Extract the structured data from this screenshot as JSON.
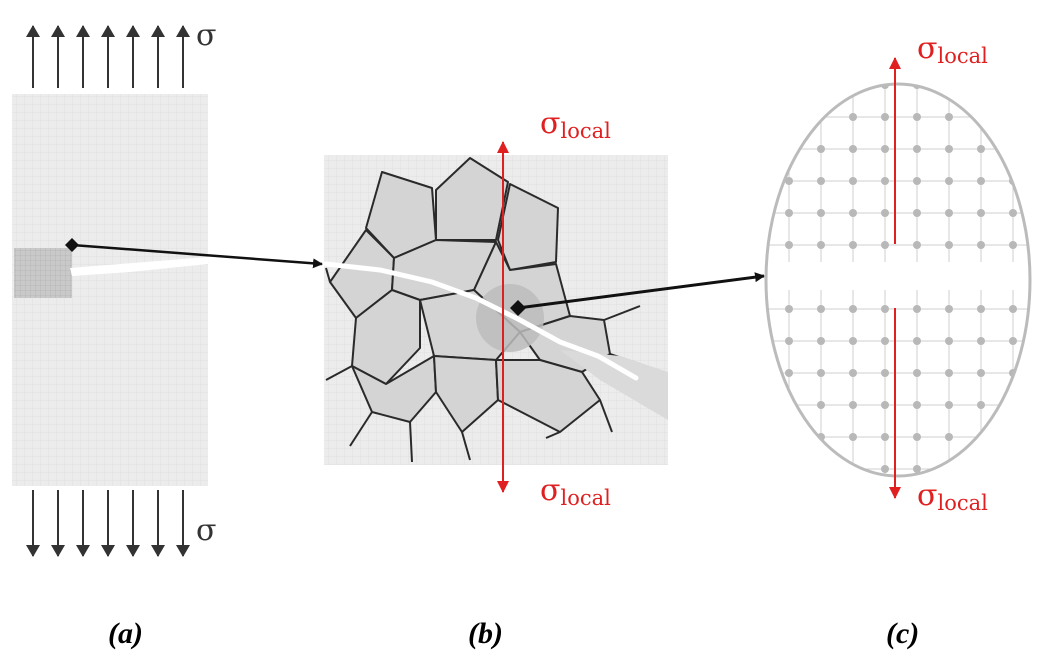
{
  "panel_a": {
    "stress_symbol": "σ",
    "caption": "(a)"
  },
  "panel_b": {
    "stress_symbol": "σ",
    "stress_subscript": "local",
    "caption": "(b)"
  },
  "panel_c": {
    "stress_symbol": "σ",
    "stress_subscript": "local",
    "caption": "(c)"
  },
  "colors": {
    "accent": "#e02020",
    "arrow": "#333333",
    "grid_fill": "#ececec",
    "grain_fill": "#d4d4d4"
  }
}
